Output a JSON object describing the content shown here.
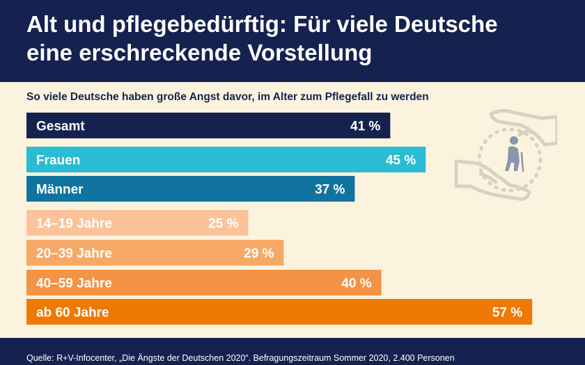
{
  "header": {
    "title_line1": "Alt und pflegebedürftig: Für viele Deutsche",
    "title_line2": "eine erschreckende Vorstellung"
  },
  "chart_data": {
    "type": "bar",
    "orientation": "horizontal",
    "subtitle": "So viele Deutsche haben große Angst davor, im Alter zum Pflegefall zu werden",
    "unit": "%",
    "categories": [
      "Gesamt",
      "Frauen",
      "Männer",
      "14–19 Jahre",
      "20–39 Jahre",
      "40–59 Jahre",
      "ab 60 Jahre"
    ],
    "values": [
      41,
      45,
      37,
      25,
      29,
      40,
      57
    ],
    "value_labels": [
      "41 %",
      "45 %",
      "37 %",
      "25 %",
      "29 %",
      "40 %",
      "57 %"
    ],
    "colors": [
      "#152250",
      "#29bcd3",
      "#11739f",
      "#fbc39a",
      "#f6a966",
      "#f29443",
      "#ef7905"
    ],
    "grid": false,
    "legend": "none"
  },
  "illustration": {
    "icon": "hands-holding-elderly-person-icon",
    "color": "#d8d2c4",
    "figure_color": "#8b95ad"
  },
  "footer": {
    "source": "Quelle: R+V-Infocenter, „Die Ängste der Deutschen 2020“. Befragungszeitraum Sommer 2020, 2.400 Personen"
  }
}
